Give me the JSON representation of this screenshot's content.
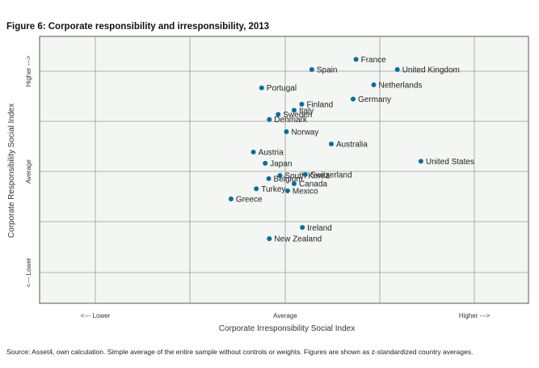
{
  "title": "Figure 6: Corporate responsibility and irresponsibility, 2013",
  "source": "Source: Asset4, own calculation. Simple average of the entire sample without controls or weights. Figures are shown as z-standardized country averages.",
  "chart_data": {
    "type": "scatter",
    "title": "Figure 6: Corporate responsibility and irresponsibility, 2013",
    "xlabel": "Corporate Irresponsibility Social Index",
    "ylabel": "Corporate Responsibility Social Index",
    "x_tick_labels": [
      "<--- Lower",
      "Average",
      "Higher --->"
    ],
    "y_tick_labels": [
      "Higher --->",
      "Average",
      "<--- Lower"
    ],
    "grid": true,
    "point_color": "#0a6e9a",
    "points": [
      {
        "label": "France",
        "x": 1.2,
        "y": 1.1
      },
      {
        "label": "Spain",
        "x": 0.45,
        "y": 1.0
      },
      {
        "label": "United Kingdom",
        "x": 1.9,
        "y": 1.0
      },
      {
        "label": "Netherlands",
        "x": 1.5,
        "y": 0.85
      },
      {
        "label": "Portugal",
        "x": -0.4,
        "y": 0.82
      },
      {
        "label": "Germany",
        "x": 1.15,
        "y": 0.71
      },
      {
        "label": "Finland",
        "x": 0.28,
        "y": 0.66
      },
      {
        "label": "Italy",
        "x": 0.15,
        "y": 0.6
      },
      {
        "label": "Sweden",
        "x": -0.12,
        "y": 0.56
      },
      {
        "label": "Denmark",
        "x": -0.27,
        "y": 0.51
      },
      {
        "label": "Norway",
        "x": 0.02,
        "y": 0.39
      },
      {
        "label": "Australia",
        "x": 0.78,
        "y": 0.27
      },
      {
        "label": "Austria",
        "x": -0.54,
        "y": 0.19
      },
      {
        "label": "United States",
        "x": 2.3,
        "y": 0.1
      },
      {
        "label": "Japan",
        "x": -0.34,
        "y": 0.08
      },
      {
        "label": "South Korea",
        "x": -0.09,
        "y": -0.04
      },
      {
        "label": "Switzerland",
        "x": 0.34,
        "y": -0.03
      },
      {
        "label": "Belgium",
        "x": -0.28,
        "y": -0.07
      },
      {
        "label": "Canada",
        "x": 0.15,
        "y": -0.12
      },
      {
        "label": "Turkey",
        "x": -0.49,
        "y": -0.17
      },
      {
        "label": "Mexico",
        "x": 0.04,
        "y": -0.19
      },
      {
        "label": "Greece",
        "x": -0.92,
        "y": -0.27
      },
      {
        "label": "Ireland",
        "x": 0.29,
        "y": -0.55
      },
      {
        "label": "New Zealand",
        "x": -0.27,
        "y": -0.66
      }
    ]
  }
}
